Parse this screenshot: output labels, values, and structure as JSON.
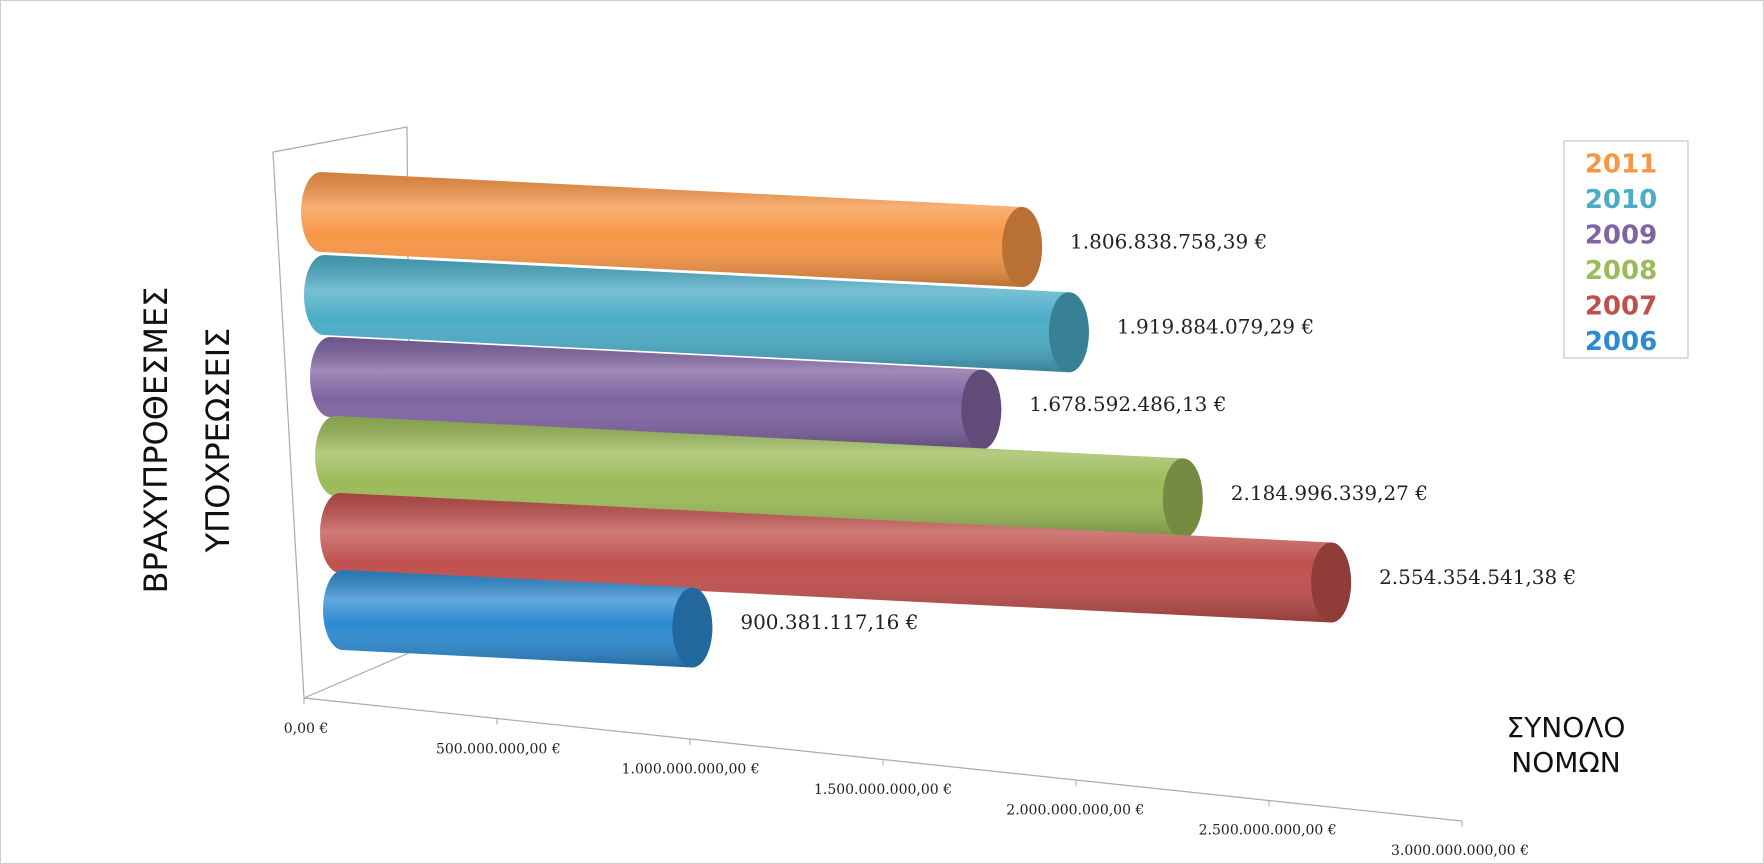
{
  "chart_data": {
    "type": "bar3d",
    "ylabel": [
      "ΒΡΑΧΥΠΡΟΘΕΣΜΕΣ",
      "ΥΠΟΧΡΕΩΣΕΙΣ"
    ],
    "xlabel": [
      "ΣΥΝΟΛΟ",
      "ΝΟΜΩΝ"
    ],
    "categories": [
      "2011",
      "2010",
      "2009",
      "2008",
      "2007",
      "2006"
    ],
    "values": [
      1806838758.39,
      1919884079.29,
      1678592486.13,
      2184996339.27,
      2554354541.38,
      900381117.16
    ],
    "value_labels": [
      "1.806.838.758,39 €",
      "1.919.884.079,29 €",
      "1.678.592.486,13 €",
      "2.184.996.339,27 €",
      "2.554.354.541,38 €",
      "900.381.117,16 €"
    ],
    "colors": [
      "#f79646",
      "#4bacc6",
      "#8064a2",
      "#9bbb59",
      "#c0504d",
      "#2e8bd1"
    ],
    "xlim": [
      0,
      3000000000
    ],
    "xticks": [
      {
        "value": 0,
        "label": "0,00 €"
      },
      {
        "value": 500000000,
        "label": "500.000.000,00 €"
      },
      {
        "value": 1000000000,
        "label": "1.000.000.000,00 €"
      },
      {
        "value": 1500000000,
        "label": "1.500.000.000,00 €"
      },
      {
        "value": 2000000000,
        "label": "2.000.000.000,00 €"
      },
      {
        "value": 2500000000,
        "label": "2.500.000.000,00 €"
      },
      {
        "value": 3000000000,
        "label": "3.000.000.000,00 €"
      }
    ],
    "legend": "right"
  }
}
